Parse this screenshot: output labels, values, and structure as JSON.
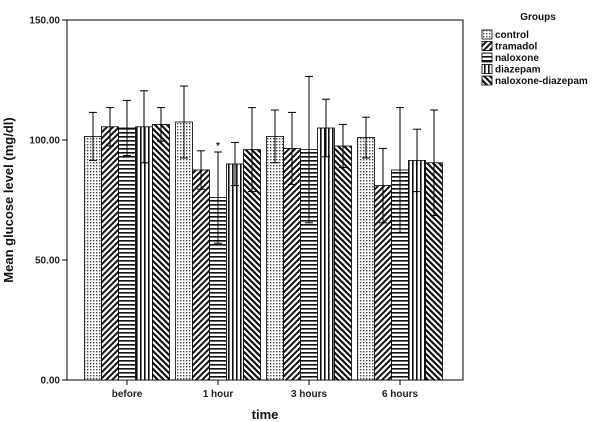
{
  "chart_data": {
    "type": "bar",
    "categories": [
      "before",
      "1 hour",
      "3 hours",
      "6 hours"
    ],
    "series": [
      {
        "name": "control",
        "pattern": "dots",
        "values": [
          101.5,
          107.5,
          101.5,
          101.0
        ],
        "err": [
          10.0,
          15.0,
          11.0,
          8.5
        ]
      },
      {
        "name": "tramadol",
        "pattern": "diag-right",
        "values": [
          105.5,
          87.5,
          96.5,
          81.0
        ],
        "err": [
          8.0,
          8.0,
          15.0,
          15.5
        ]
      },
      {
        "name": "naloxone",
        "pattern": "horizontal",
        "values": [
          105.0,
          76.0,
          96.0,
          87.5
        ],
        "err": [
          11.5,
          19.0,
          30.5,
          26.0
        ]
      },
      {
        "name": "diazepam",
        "pattern": "vertical",
        "values": [
          105.5,
          90.0,
          105.0,
          91.5
        ],
        "err": [
          15.0,
          9.0,
          12.0,
          13.0
        ]
      },
      {
        "name": "naloxone-diazepam",
        "pattern": "diag-left",
        "values": [
          106.5,
          96.0,
          97.5,
          90.5
        ],
        "err": [
          7.0,
          17.5,
          9.0,
          22.0
        ]
      }
    ],
    "annotations": [
      {
        "category": "1 hour",
        "series": "naloxone",
        "text": "*"
      }
    ],
    "yticks": [
      "0.00",
      "50.00",
      "100.00",
      "150.00"
    ],
    "xlabel": "time",
    "ylabel": "Mean glucose level (mg/dl)",
    "ylim": [
      0,
      150
    ],
    "legend": {
      "title": "Groups",
      "placement": "top-right"
    }
  }
}
